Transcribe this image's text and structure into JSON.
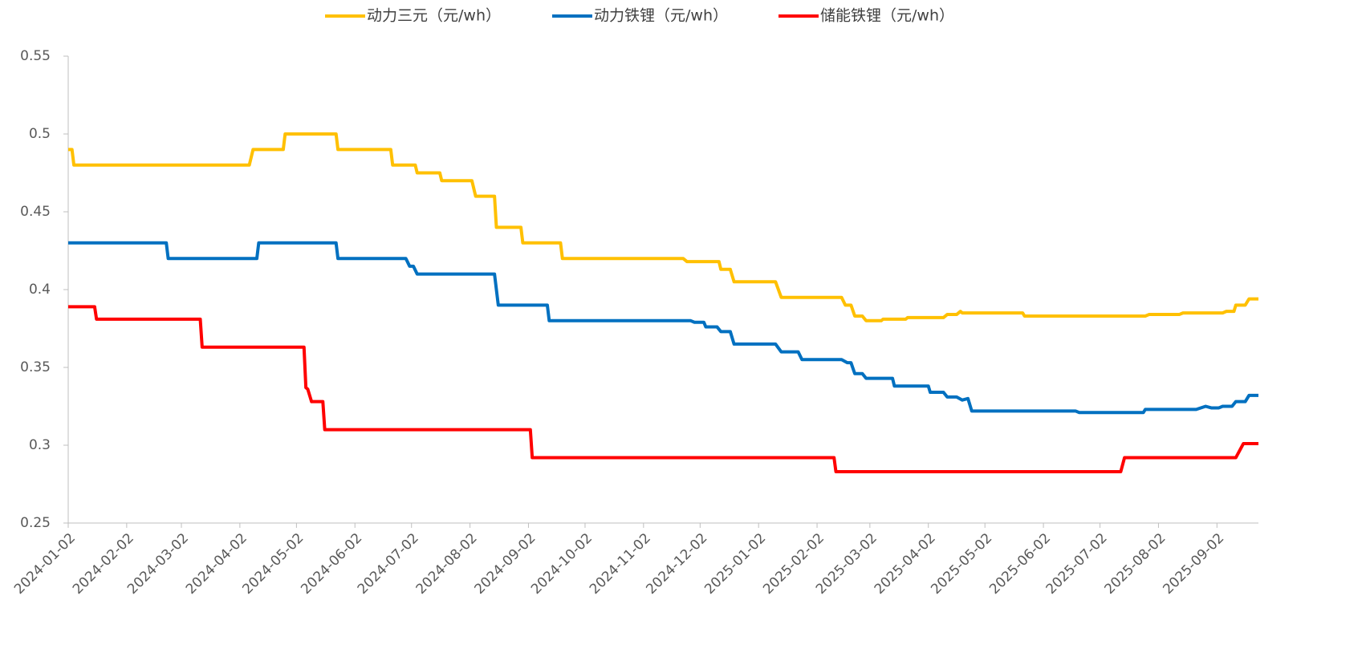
{
  "chart_data": {
    "type": "line",
    "xlim": [
      "2024-01-02",
      "2025-09-24"
    ],
    "xticks": [
      "2024-01-02",
      "2024-02-02",
      "2024-03-02",
      "2024-04-02",
      "2024-05-02",
      "2024-06-02",
      "2024-07-02",
      "2024-08-02",
      "2024-09-02",
      "2024-10-02",
      "2024-11-02",
      "2024-12-02",
      "2025-01-02",
      "2025-02-02",
      "2025-03-02",
      "2025-04-02",
      "2025-05-02",
      "2025-06-02",
      "2025-07-02",
      "2025-08-02",
      "2025-09-02"
    ],
    "ylim": [
      0.25,
      0.55
    ],
    "yticks": [
      0.25,
      0.3,
      0.35,
      0.4,
      0.45,
      0.5,
      0.55
    ],
    "grid": false,
    "legend": "top",
    "series": [
      {
        "name": "动力三元（元/wh）",
        "color": "#FFC000",
        "x": [
          "2024-01-02",
          "2024-01-04",
          "2024-01-05",
          "2024-04-07",
          "2024-04-09",
          "2024-04-25",
          "2024-04-26",
          "2024-05-23",
          "2024-05-24",
          "2024-06-21",
          "2024-06-22",
          "2024-07-04",
          "2024-07-05",
          "2024-07-17",
          "2024-07-18",
          "2024-08-03",
          "2024-08-05",
          "2024-08-15",
          "2024-08-16",
          "2024-08-29",
          "2024-08-30",
          "2024-09-19",
          "2024-09-20",
          "2024-11-23",
          "2024-11-25",
          "2024-12-12",
          "2024-12-13",
          "2024-12-18",
          "2024-12-20",
          "2025-01-11",
          "2025-01-14",
          "2025-02-15",
          "2025-02-17",
          "2025-02-20",
          "2025-02-22",
          "2025-02-26",
          "2025-02-28",
          "2025-03-08",
          "2025-03-09",
          "2025-03-21",
          "2025-03-22",
          "2025-04-10",
          "2025-04-12",
          "2025-04-17",
          "2025-04-19",
          "2025-04-20",
          "2025-05-22",
          "2025-05-23",
          "2025-07-26",
          "2025-07-28",
          "2025-08-13",
          "2025-08-15",
          "2025-09-05",
          "2025-09-07",
          "2025-09-11",
          "2025-09-12",
          "2025-09-17",
          "2025-09-19",
          "2025-09-24"
        ],
        "values": [
          0.49,
          0.49,
          0.48,
          0.48,
          0.49,
          0.49,
          0.5,
          0.5,
          0.49,
          0.49,
          0.48,
          0.48,
          0.475,
          0.475,
          0.47,
          0.47,
          0.46,
          0.46,
          0.44,
          0.44,
          0.43,
          0.43,
          0.42,
          0.42,
          0.418,
          0.418,
          0.413,
          0.413,
          0.405,
          0.405,
          0.395,
          0.395,
          0.39,
          0.39,
          0.383,
          0.383,
          0.38,
          0.38,
          0.381,
          0.381,
          0.382,
          0.382,
          0.384,
          0.384,
          0.386,
          0.385,
          0.385,
          0.383,
          0.383,
          0.384,
          0.384,
          0.385,
          0.385,
          0.386,
          0.386,
          0.39,
          0.39,
          0.394,
          0.394
        ]
      },
      {
        "name": "动力铁锂（元/wh）",
        "color": "#0070C0",
        "x": [
          "2024-01-02",
          "2024-02-23",
          "2024-02-24",
          "2024-04-11",
          "2024-04-12",
          "2024-05-23",
          "2024-05-24",
          "2024-06-29",
          "2024-07-01",
          "2024-07-03",
          "2024-07-05",
          "2024-08-15",
          "2024-08-17",
          "2024-09-12",
          "2024-09-13",
          "2024-11-27",
          "2024-11-29",
          "2024-12-04",
          "2024-12-05",
          "2024-12-11",
          "2024-12-13",
          "2024-12-18",
          "2024-12-20",
          "2025-01-11",
          "2025-01-14",
          "2025-01-23",
          "2025-01-25",
          "2025-02-15",
          "2025-02-18",
          "2025-02-20",
          "2025-02-22",
          "2025-02-26",
          "2025-02-28",
          "2025-03-14",
          "2025-03-15",
          "2025-04-02",
          "2025-04-03",
          "2025-04-10",
          "2025-04-12",
          "2025-04-17",
          "2025-04-20",
          "2025-04-23",
          "2025-04-25",
          "2025-06-19",
          "2025-06-21",
          "2025-07-25",
          "2025-07-26",
          "2025-08-22",
          "2025-08-27",
          "2025-08-30",
          "2025-09-03",
          "2025-09-05",
          "2025-09-10",
          "2025-09-12",
          "2025-09-17",
          "2025-09-19",
          "2025-09-24"
        ],
        "values": [
          0.43,
          0.43,
          0.42,
          0.42,
          0.43,
          0.43,
          0.42,
          0.42,
          0.415,
          0.415,
          0.41,
          0.41,
          0.39,
          0.39,
          0.38,
          0.38,
          0.379,
          0.379,
          0.376,
          0.376,
          0.373,
          0.373,
          0.365,
          0.365,
          0.36,
          0.36,
          0.355,
          0.355,
          0.353,
          0.353,
          0.346,
          0.346,
          0.343,
          0.343,
          0.338,
          0.338,
          0.334,
          0.334,
          0.331,
          0.331,
          0.329,
          0.33,
          0.322,
          0.322,
          0.321,
          0.321,
          0.323,
          0.323,
          0.325,
          0.324,
          0.324,
          0.325,
          0.325,
          0.328,
          0.328,
          0.332,
          0.332
        ]
      },
      {
        "name": "储能铁锂（元/wh）",
        "color": "#FF0000",
        "x": [
          "2024-01-02",
          "2024-01-16",
          "2024-01-17",
          "2024-03-12",
          "2024-03-13",
          "2024-05-06",
          "2024-05-07",
          "2024-05-08",
          "2024-05-10",
          "2024-05-16",
          "2024-05-17",
          "2024-09-03",
          "2024-09-04",
          "2025-02-11",
          "2025-02-12",
          "2025-07-13",
          "2025-07-15",
          "2025-09-12",
          "2025-09-16",
          "2025-09-24"
        ],
        "values": [
          0.389,
          0.389,
          0.381,
          0.381,
          0.363,
          0.363,
          0.337,
          0.336,
          0.328,
          0.328,
          0.31,
          0.31,
          0.292,
          0.292,
          0.283,
          0.283,
          0.292,
          0.292,
          0.301,
          0.301
        ]
      }
    ]
  }
}
